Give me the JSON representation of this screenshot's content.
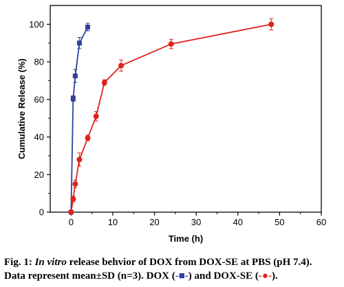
{
  "chart_data": {
    "type": "line",
    "xlabel": "Time (h)",
    "ylabel": "Cumulative Release (%)",
    "xlim": [
      -5,
      60
    ],
    "ylim": [
      0,
      110
    ],
    "xticks": [
      0,
      10,
      20,
      30,
      40,
      50,
      60
    ],
    "yticks": [
      0,
      20,
      40,
      60,
      80,
      100
    ],
    "grid": false,
    "series": [
      {
        "key": "dox",
        "color": "#2f3f9e",
        "marker": "square",
        "x": [
          0,
          0.5,
          1,
          2,
          4
        ],
        "y": [
          0,
          60.5,
          72.5,
          90,
          98.5
        ],
        "err": [
          0,
          1.5,
          3.5,
          3,
          2
        ]
      },
      {
        "key": "doxse",
        "color": "#e0211c",
        "marker": "circle",
        "x": [
          0,
          0.5,
          1,
          2,
          4,
          6,
          8,
          12,
          24,
          48
        ],
        "y": [
          0,
          7,
          15,
          28,
          39.5,
          51,
          69,
          78,
          89.5,
          100
        ],
        "err": [
          0,
          1.5,
          2,
          3.5,
          1.5,
          2.5,
          1.5,
          3,
          2.5,
          3
        ]
      }
    ]
  },
  "caption": {
    "fig_label": "Fig. 1: ",
    "italic_phrase": "In vitro",
    "line1_rest": " release behvior of DOX from DOX-SE at PBS (pH 7.4).",
    "line2_start": "Data represent mean±SD (n=3). DOX (",
    "dox_symbol": "-■-",
    "line2_mid": ") and DOX-SE (",
    "doxse_symbol": "-●-",
    "line2_end": ")."
  }
}
